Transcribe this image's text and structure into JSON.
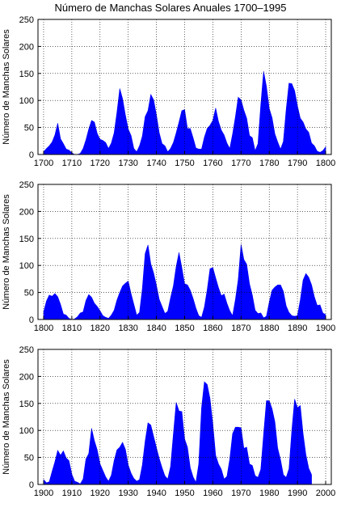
{
  "figure": {
    "title": "Número de Manchas Solares Anuales 1700–1995"
  },
  "colors": {
    "fill": "#0000ff",
    "axis": "#000000",
    "grid": "#000000",
    "background": "#ffffff"
  },
  "chart_data": [
    {
      "type": "area",
      "title": "Número de Manchas Solares Anuales 1700–1995",
      "xlabel": "",
      "ylabel": "Número de Manchas Solares",
      "xlim": [
        1698,
        1802
      ],
      "ylim": [
        0,
        250
      ],
      "xticks": [
        1700,
        1710,
        1720,
        1730,
        1740,
        1750,
        1760,
        1770,
        1780,
        1790,
        1800
      ],
      "yticks": [
        0,
        50,
        100,
        150,
        200,
        250
      ],
      "grid": true,
      "x": [
        1700,
        1701,
        1702,
        1703,
        1704,
        1705,
        1706,
        1707,
        1708,
        1709,
        1710,
        1711,
        1712,
        1713,
        1714,
        1715,
        1716,
        1717,
        1718,
        1719,
        1720,
        1721,
        1722,
        1723,
        1724,
        1725,
        1726,
        1727,
        1728,
        1729,
        1730,
        1731,
        1732,
        1733,
        1734,
        1735,
        1736,
        1737,
        1738,
        1739,
        1740,
        1741,
        1742,
        1743,
        1744,
        1745,
        1746,
        1747,
        1748,
        1749,
        1750,
        1751,
        1752,
        1753,
        1754,
        1755,
        1756,
        1757,
        1758,
        1759,
        1760,
        1761,
        1762,
        1763,
        1764,
        1765,
        1766,
        1767,
        1768,
        1769,
        1770,
        1771,
        1772,
        1773,
        1774,
        1775,
        1776,
        1777,
        1778,
        1779,
        1780,
        1781,
        1782,
        1783,
        1784,
        1785,
        1786,
        1787,
        1788,
        1789,
        1790,
        1791,
        1792,
        1793,
        1794,
        1795,
        1796,
        1797,
        1798,
        1799,
        1800
      ],
      "values": [
        5,
        11,
        16,
        23,
        36,
        58,
        29,
        20,
        10,
        8,
        3,
        0,
        0,
        2,
        11,
        27,
        47,
        63,
        60,
        39,
        28,
        26,
        22,
        11,
        21,
        40,
        78,
        122,
        103,
        73,
        47,
        35,
        11,
        5,
        16,
        34,
        70,
        81,
        111,
        101,
        73,
        40,
        20,
        16,
        5,
        11,
        22,
        40,
        60,
        81,
        83,
        48,
        48,
        31,
        12,
        10,
        10,
        32,
        48,
        54,
        63,
        86,
        61,
        45,
        36,
        21,
        11,
        38,
        70,
        106,
        101,
        82,
        67,
        35,
        31,
        7,
        20,
        92,
        154,
        126,
        85,
        68,
        38,
        23,
        10,
        24,
        83,
        132,
        131,
        118,
        90,
        67,
        60,
        47,
        41,
        21,
        16,
        6,
        4,
        7,
        14
      ]
    },
    {
      "type": "area",
      "title": "",
      "xlabel": "",
      "ylabel": "Número de Manchas Solares",
      "xlim": [
        1798,
        1902
      ],
      "ylim": [
        0,
        250
      ],
      "xticks": [
        1800,
        1810,
        1820,
        1830,
        1840,
        1850,
        1860,
        1870,
        1880,
        1890,
        1900
      ],
      "yticks": [
        0,
        50,
        100,
        150,
        200,
        250
      ],
      "grid": true,
      "x": [
        1800,
        1801,
        1802,
        1803,
        1804,
        1805,
        1806,
        1807,
        1808,
        1809,
        1810,
        1811,
        1812,
        1813,
        1814,
        1815,
        1816,
        1817,
        1818,
        1819,
        1820,
        1821,
        1822,
        1823,
        1824,
        1825,
        1826,
        1827,
        1828,
        1829,
        1830,
        1831,
        1832,
        1833,
        1834,
        1835,
        1836,
        1837,
        1838,
        1839,
        1840,
        1841,
        1842,
        1843,
        1844,
        1845,
        1846,
        1847,
        1848,
        1849,
        1850,
        1851,
        1852,
        1853,
        1854,
        1855,
        1856,
        1857,
        1858,
        1859,
        1860,
        1861,
        1862,
        1863,
        1864,
        1865,
        1866,
        1867,
        1868,
        1869,
        1870,
        1871,
        1872,
        1873,
        1874,
        1875,
        1876,
        1877,
        1878,
        1879,
        1880,
        1881,
        1882,
        1883,
        1884,
        1885,
        1886,
        1887,
        1888,
        1889,
        1890,
        1891,
        1892,
        1893,
        1894,
        1895,
        1896,
        1897,
        1898,
        1899,
        1900
      ],
      "values": [
        14,
        34,
        45,
        43,
        48,
        42,
        28,
        10,
        8,
        2,
        0,
        1,
        5,
        12,
        14,
        35,
        46,
        41,
        30,
        24,
        16,
        7,
        4,
        2,
        8,
        17,
        36,
        50,
        62,
        67,
        71,
        48,
        28,
        8,
        13,
        57,
        122,
        138,
        103,
        86,
        63,
        37,
        24,
        11,
        15,
        40,
        62,
        98,
        124,
        96,
        66,
        64,
        54,
        39,
        21,
        7,
        4,
        23,
        55,
        94,
        96,
        77,
        59,
        44,
        47,
        30,
        16,
        7,
        37,
        74,
        139,
        111,
        102,
        66,
        45,
        17,
        11,
        12,
        3,
        6,
        32,
        54,
        60,
        64,
        64,
        52,
        25,
        13,
        7,
        6,
        7,
        36,
        73,
        85,
        78,
        64,
        42,
        26,
        27,
        12,
        9
      ]
    },
    {
      "type": "area",
      "title": "",
      "xlabel": "",
      "ylabel": "Número de Manchas Solares",
      "xlim": [
        1898,
        2002
      ],
      "ylim": [
        0,
        250
      ],
      "xticks": [
        1900,
        1910,
        1920,
        1930,
        1940,
        1950,
        1960,
        1970,
        1980,
        1990,
        2000
      ],
      "yticks": [
        0,
        50,
        100,
        150,
        200,
        250
      ],
      "grid": true,
      "x": [
        1900,
        1901,
        1902,
        1903,
        1904,
        1905,
        1906,
        1907,
        1908,
        1909,
        1910,
        1911,
        1912,
        1913,
        1914,
        1915,
        1916,
        1917,
        1918,
        1919,
        1920,
        1921,
        1922,
        1923,
        1924,
        1925,
        1926,
        1927,
        1928,
        1929,
        1930,
        1931,
        1932,
        1933,
        1934,
        1935,
        1936,
        1937,
        1938,
        1939,
        1940,
        1941,
        1942,
        1943,
        1944,
        1945,
        1946,
        1947,
        1948,
        1949,
        1950,
        1951,
        1952,
        1953,
        1954,
        1955,
        1956,
        1957,
        1958,
        1959,
        1960,
        1961,
        1962,
        1963,
        1964,
        1965,
        1966,
        1967,
        1968,
        1969,
        1970,
        1971,
        1972,
        1973,
        1974,
        1975,
        1976,
        1977,
        1978,
        1979,
        1980,
        1981,
        1982,
        1983,
        1984,
        1985,
        1986,
        1987,
        1988,
        1989,
        1990,
        1991,
        1992,
        1993,
        1994,
        1995
      ],
      "values": [
        9,
        3,
        5,
        24,
        42,
        63,
        54,
        62,
        49,
        44,
        19,
        6,
        4,
        1,
        10,
        47,
        57,
        104,
        81,
        64,
        38,
        26,
        14,
        6,
        17,
        44,
        64,
        69,
        78,
        65,
        36,
        21,
        11,
        6,
        9,
        36,
        80,
        114,
        110,
        89,
        68,
        48,
        31,
        16,
        10,
        33,
        93,
        152,
        136,
        135,
        84,
        69,
        31,
        14,
        4,
        38,
        142,
        190,
        185,
        159,
        112,
        54,
        38,
        28,
        10,
        15,
        47,
        94,
        106,
        106,
        105,
        67,
        69,
        38,
        35,
        16,
        13,
        28,
        93,
        155,
        155,
        140,
        116,
        67,
        46,
        18,
        13,
        29,
        100,
        158,
        142,
        146,
        94,
        55,
        30,
        18
      ]
    }
  ]
}
